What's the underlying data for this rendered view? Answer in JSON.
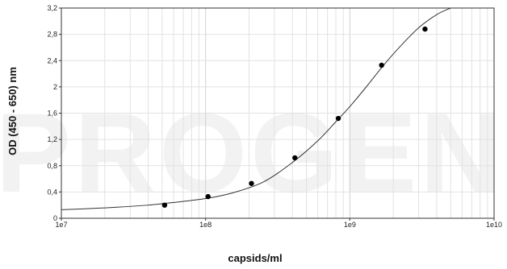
{
  "chart_data": {
    "type": "scatter",
    "title": "",
    "xlabel": "capsids/ml",
    "ylabel": "OD (450 - 650) nm",
    "x_scale": "log",
    "xlim": [
      10000000,
      10000000000
    ],
    "ylim": [
      0,
      3.2
    ],
    "x_ticks": [
      10000000,
      100000000,
      1000000000,
      10000000000
    ],
    "x_tick_labels": [
      "1e7",
      "1e8",
      "1e9",
      "1e10"
    ],
    "y_ticks": [
      0,
      0.4,
      0.8,
      1.2,
      1.6,
      2,
      2.4,
      2.8,
      3.2
    ],
    "y_tick_labels": [
      "0",
      "0,4",
      "0,8",
      "1,2",
      "1,6",
      "2",
      "2,4",
      "2,8",
      "3,2"
    ],
    "grid": true,
    "legend": "none",
    "watermark": "PROGEN",
    "series": [
      {
        "style": "points",
        "color": "#000000",
        "x": [
          52000000,
          104000000,
          208000000,
          416000000,
          832000000,
          1660000000,
          3320000000
        ],
        "y": [
          0.2,
          0.33,
          0.53,
          0.92,
          1.52,
          2.33,
          2.88
        ]
      },
      {
        "style": "fitted-curve",
        "color": "#333333",
        "x": [
          10000000,
          15000000,
          25000000,
          40000000,
          60000000,
          100000000,
          150000000,
          250000000,
          400000000,
          600000000,
          800000000,
          1000000000,
          1300000000,
          1700000000,
          2200000000,
          3000000000,
          4000000000,
          5000000000,
          6000000000
        ],
        "y": [
          0.13,
          0.145,
          0.17,
          0.2,
          0.24,
          0.3,
          0.38,
          0.55,
          0.85,
          1.18,
          1.47,
          1.7,
          2.0,
          2.32,
          2.6,
          2.9,
          3.1,
          3.2,
          3.27
        ]
      }
    ]
  }
}
